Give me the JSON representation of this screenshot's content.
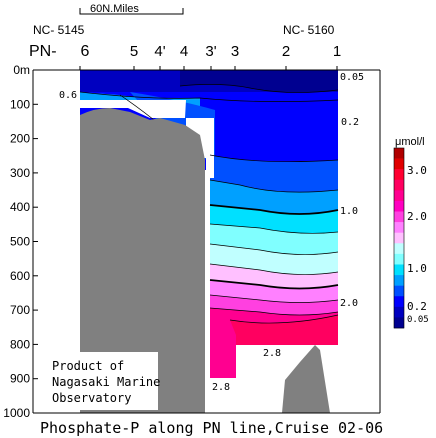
{
  "chart_data": {
    "type": "heatmap",
    "title": "Phosphate-P along PN line,Cruise 02-06",
    "scale_bar_label": "60N.Miles",
    "line_label": "PN-",
    "station_start_label": "NC- 5145",
    "station_end_label": "NC- 5160",
    "stations": [
      "6",
      "5",
      "4'",
      "4",
      "3'",
      "3",
      "2",
      "1"
    ],
    "y_axis": {
      "ticks": [
        "0m",
        "100",
        "200",
        "300",
        "400",
        "500",
        "600",
        "700",
        "800",
        "900",
        "1000"
      ],
      "values": [
        0,
        100,
        200,
        300,
        400,
        500,
        600,
        700,
        800,
        900,
        1000
      ],
      "ylim": [
        0,
        1000
      ],
      "unit": "m"
    },
    "contour_labels": [
      "0.05",
      "0.6",
      "0.2",
      "1.0",
      "2.0",
      "2.8",
      "2.8"
    ],
    "colorbar": {
      "unit": "μmol/l",
      "tick_labels": [
        "3.0",
        "2.0",
        "1.0",
        "0.2",
        "0.05"
      ],
      "tick_values": [
        3.0,
        2.0,
        1.0,
        0.2,
        0.05
      ],
      "levels": [
        0.05,
        0.1,
        0.2,
        0.4,
        0.6,
        0.8,
        1.0,
        1.2,
        1.4,
        1.6,
        1.8,
        2.0,
        2.2,
        2.4,
        2.6,
        2.8,
        3.0,
        3.2
      ],
      "colors": [
        "#000090",
        "#0000c0",
        "#0000ff",
        "#0050ff",
        "#00a0ff",
        "#00e0ff",
        "#80ffff",
        "#c0ffff",
        "#ffc0ff",
        "#ff80ff",
        "#ff40e0",
        "#ff00c0",
        "#ff0090",
        "#ff0060",
        "#ff0030",
        "#e00000",
        "#b00000"
      ]
    },
    "credit": [
      "Product of",
      "Nagasaki Marine",
      "Observatory"
    ],
    "colors": {
      "land": "#808080",
      "white_area": "#ffffff"
    }
  }
}
